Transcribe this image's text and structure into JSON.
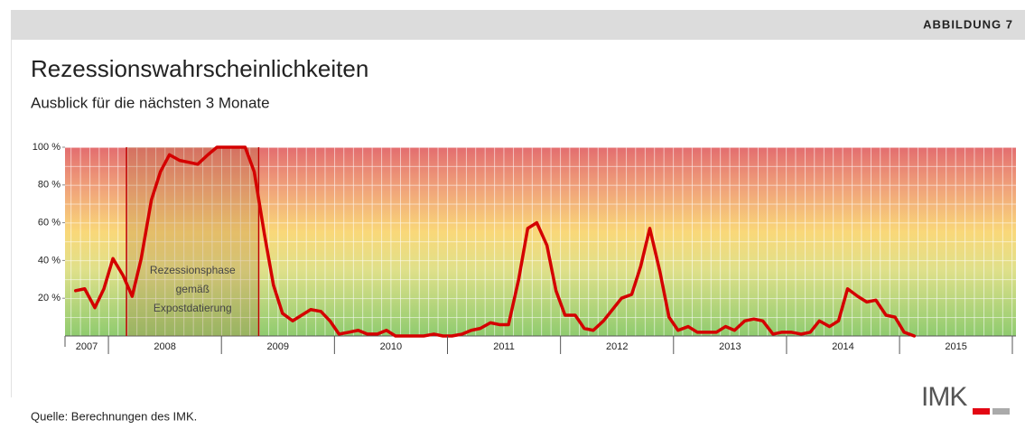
{
  "header": {
    "label": "ABBILDUNG 7"
  },
  "chart_data": {
    "type": "line",
    "title": "Rezessionswahrscheinlichkeiten",
    "subtitle": "Ausblick für die nächsten 3 Monate",
    "x": [
      2007.71,
      2007.79,
      2007.88,
      2007.96,
      2008.04,
      2008.13,
      2008.21,
      2008.29,
      2008.38,
      2008.46,
      2008.54,
      2008.63,
      2008.71,
      2008.79,
      2008.88,
      2008.96,
      2009.04,
      2009.13,
      2009.21,
      2009.29,
      2009.38,
      2009.46,
      2009.54,
      2009.63,
      2009.71,
      2009.79,
      2009.88,
      2009.96,
      2010.04,
      2010.13,
      2010.21,
      2010.29,
      2010.38,
      2010.46,
      2010.54,
      2010.63,
      2010.71,
      2010.79,
      2010.88,
      2010.96,
      2011.04,
      2011.13,
      2011.21,
      2011.29,
      2011.38,
      2011.46,
      2011.54,
      2011.63,
      2011.71,
      2011.79,
      2011.88,
      2011.96,
      2012.04,
      2012.13,
      2012.21,
      2012.29,
      2012.38,
      2012.46,
      2012.54,
      2012.63,
      2012.71,
      2012.79,
      2012.88,
      2012.96,
      2013.04,
      2013.13,
      2013.21,
      2013.29,
      2013.38,
      2013.46,
      2013.54,
      2013.63,
      2013.71,
      2013.79,
      2013.88,
      2013.96,
      2014.04,
      2014.13,
      2014.21,
      2014.29,
      2014.38,
      2014.46,
      2014.54,
      2014.63,
      2014.71,
      2014.79,
      2014.88,
      2014.96,
      2015.04,
      2015.13
    ],
    "series": [
      {
        "color": "#d40000",
        "values": [
          24,
          25,
          15,
          25,
          41,
          32,
          21,
          41,
          72,
          87,
          96,
          93,
          92,
          91,
          96,
          100,
          100,
          100,
          100,
          87,
          54,
          27,
          12,
          8,
          11,
          14,
          13,
          8,
          1,
          2,
          3,
          1,
          1,
          3,
          0,
          0,
          0,
          0,
          1,
          0,
          0,
          1,
          3,
          4,
          7,
          6,
          6,
          30,
          57,
          60,
          48,
          24,
          11,
          11,
          4,
          3,
          8,
          14,
          20,
          22,
          37,
          57,
          34,
          10,
          3,
          5,
          2,
          2,
          2,
          5,
          3,
          8,
          9,
          8,
          1,
          2,
          2,
          1,
          2,
          8,
          5,
          8,
          25,
          21,
          18,
          19,
          11,
          10,
          2,
          0
        ]
      }
    ],
    "xlim": [
      2007.616,
      2016.03
    ],
    "xticks": [
      2007,
      2008,
      2009,
      2010,
      2011,
      2012,
      2013,
      2014,
      2015
    ],
    "ylim": [
      0,
      100
    ],
    "yticks": [
      {
        "value": 20,
        "label": "20 %"
      },
      {
        "value": 40,
        "label": "40 %"
      },
      {
        "value": 60,
        "label": "60 %"
      },
      {
        "value": 80,
        "label": "80 %"
      },
      {
        "value": 100,
        "label": "100 %"
      }
    ],
    "recession": {
      "start": 2008.16,
      "end": 2009.33,
      "label": [
        "Rezessionsphase",
        "gemäß",
        "Expostdatierung"
      ]
    }
  },
  "footer": {
    "source": "Quelle: Berechnungen des IMK.",
    "logo": "IMK"
  }
}
